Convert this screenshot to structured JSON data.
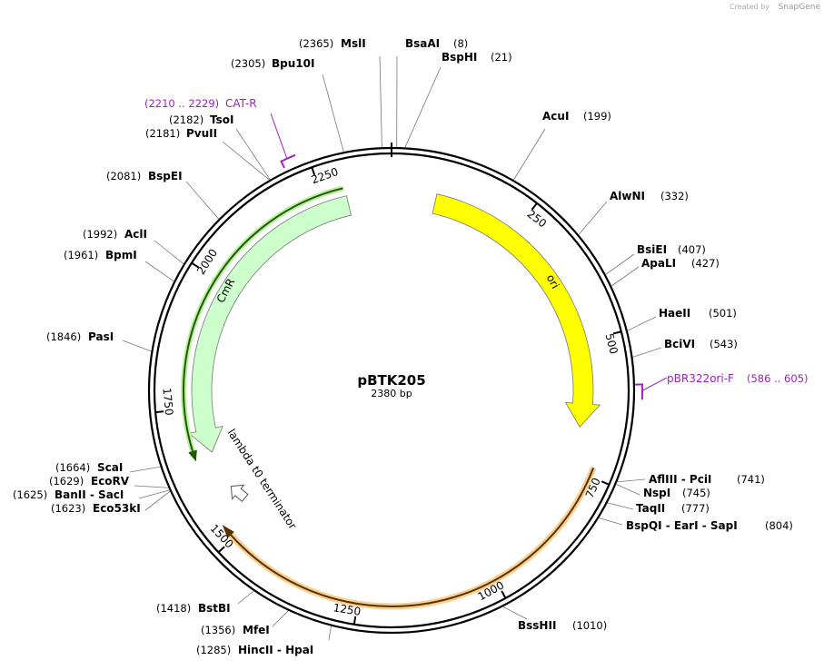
{
  "brand": {
    "created_by": "Created by",
    "name": "SnapGene"
  },
  "plasmid": {
    "name": "pBTK205",
    "length": "2380 bp"
  },
  "ticks": [
    250,
    500,
    750,
    1000,
    1250,
    1500,
    1750,
    2000,
    2250
  ],
  "sites": [
    {
      "name": "MslI",
      "position": "(2365)"
    },
    {
      "name": "BsaAI",
      "position": "(8)"
    },
    {
      "name": "BspHI",
      "position": "(21)"
    },
    {
      "name": "Bpu10I",
      "position": "(2305)"
    },
    {
      "name": "AcuI",
      "position": "(199)"
    },
    {
      "name": "TsoI",
      "position": "(2182)"
    },
    {
      "name": "PvuII",
      "position": "(2181)"
    },
    {
      "name": "BspEI",
      "position": "(2081)"
    },
    {
      "name": "AlwNI",
      "position": "(332)"
    },
    {
      "name": "AclI",
      "position": "(1992)"
    },
    {
      "name": "BsiEI",
      "position": "(407)"
    },
    {
      "name": "BpmI",
      "position": "(1961)"
    },
    {
      "name": "ApaLI",
      "position": "(427)"
    },
    {
      "name": "HaeII",
      "position": "(501)"
    },
    {
      "name": "PasI",
      "position": "(1846)"
    },
    {
      "name": "BciVI",
      "position": "(543)"
    },
    {
      "name": "ScaI",
      "position": "(1664)"
    },
    {
      "name": "AflIII - PciI",
      "position": "(741)"
    },
    {
      "name": "EcoRV",
      "position": "(1629)"
    },
    {
      "name": "NspI",
      "position": "(745)"
    },
    {
      "name": "BanII - SacI",
      "position": "(1625)"
    },
    {
      "name": "TaqII",
      "position": "(777)"
    },
    {
      "name": "Eco53kI",
      "position": "(1623)"
    },
    {
      "name": "BspQI - EarI - SapI",
      "position": "(804)"
    },
    {
      "name": "BstBI",
      "position": "(1418)"
    },
    {
      "name": "BssHII",
      "position": "(1010)"
    },
    {
      "name": "MfeI",
      "position": "(1356)"
    },
    {
      "name": "HincII - HpaI",
      "position": "(1285)"
    }
  ],
  "features": [
    {
      "label": "ori"
    },
    {
      "label": "CmR"
    },
    {
      "label": "lambda t0 terminator"
    }
  ],
  "primers": [
    {
      "name": "CAT-R",
      "range": "(2210 .. 2229)"
    },
    {
      "name": "pBR322ori-F",
      "range": "(586 .. 605)"
    }
  ]
}
